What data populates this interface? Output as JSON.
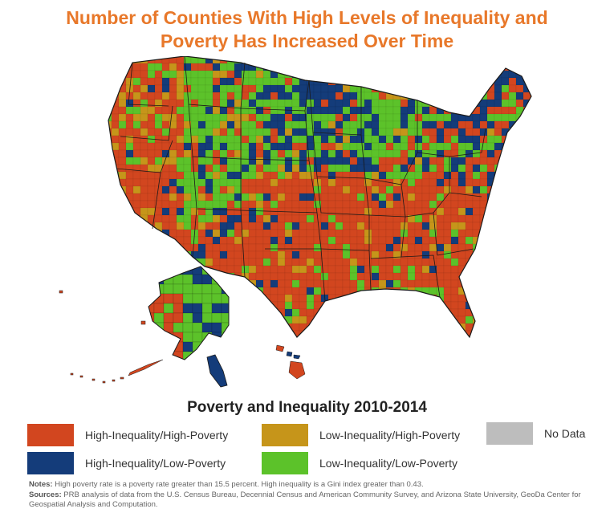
{
  "title_line1": "Number of Counties With High Levels of Inequality and",
  "title_line2": "Poverty Has Increased Over Time",
  "legend": {
    "title": "Poverty and Inequality 2010-2014",
    "items": [
      {
        "label": "High-Inequality/High-Poverty",
        "color": "#d2461f"
      },
      {
        "label": "Low-Inequality/High-Poverty",
        "color": "#c6951a"
      },
      {
        "label": "No Data",
        "color": "#bdbdbd"
      },
      {
        "label": "High-Inequality/Low-Poverty",
        "color": "#143c7a"
      },
      {
        "label": "Low-Inequality/Low-Poverty",
        "color": "#5cc22a"
      }
    ]
  },
  "notes": {
    "notes_label": "Notes:",
    "notes_text": " High poverty rate is a poverty rate greater than 15.5 percent. High inequality is a Gini index greater than 0.43.",
    "sources_label": "Sources:",
    "sources_text": " PRB analysis of data from the U.S. Census Bureau, Decennial Census and American Community Survey, and Arizona State University, GeoDa Center for Geospatial Analysis and Computation."
  },
  "map": {
    "regions": [
      "contiguous-us",
      "alaska",
      "hawaii"
    ],
    "colors": {
      "high_high": "#d2461f",
      "low_high": "#c6951a",
      "high_low": "#143c7a",
      "low_low": "#5cc22a",
      "border": "#1a1a1a"
    }
  }
}
